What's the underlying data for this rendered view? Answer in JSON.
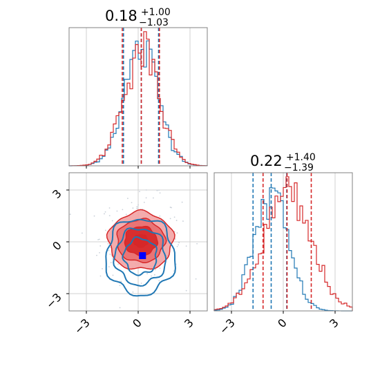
{
  "colors": {
    "red": "#d62728",
    "blue": "#1f77b4",
    "red_light": "#f3a3a4",
    "red_mid": "#e86e6f",
    "grid": "#d0d0d0",
    "marker": "#0000ff"
  },
  "titles": {
    "p1": {
      "main": "0.18",
      "sup": "+1.00",
      "sub": "−1.03"
    },
    "p2": {
      "main": "0.22",
      "sup": "+1.40",
      "sub": "−1.39"
    }
  },
  "ticks": {
    "labels": [
      "−3",
      "0",
      "3"
    ],
    "values": [
      -3,
      0,
      3
    ]
  },
  "chart_data": [
    {
      "type": "histogram",
      "panel": "marginal parameter 1",
      "xlim": [
        -4,
        4
      ],
      "grid": true,
      "series": [
        {
          "color": "#1f77b4",
          "quantiles": [
            -0.85,
            0.18,
            1.18
          ],
          "mean": 0.18,
          "std": 1.0
        },
        {
          "color": "#d62728",
          "quantiles": [
            -0.92,
            0.18,
            1.23
          ],
          "mean": 0.15,
          "std": 1.02
        }
      ]
    },
    {
      "type": "histogram",
      "panel": "marginal parameter 2",
      "xlim": [
        -4,
        4
      ],
      "grid": true,
      "series": [
        {
          "color": "#1f77b4",
          "quantiles": [
            -1.75,
            -0.7,
            0.2
          ],
          "mean": -0.7,
          "std": 1.0
        },
        {
          "color": "#d62728",
          "quantiles": [
            -1.17,
            0.22,
            1.62
          ],
          "mean": 0.22,
          "std": 1.4
        }
      ]
    },
    {
      "type": "contour",
      "panel": "joint parameter 1 vs parameter 2",
      "xlim": [
        -4,
        4
      ],
      "ylim": [
        -4,
        4
      ],
      "grid": true,
      "series": [
        {
          "color": "#d62728",
          "filled": true,
          "center": [
            0.15,
            0.22
          ],
          "sx": 1.02,
          "sy": 1.4
        },
        {
          "color": "#1f77b4",
          "filled": false,
          "center": [
            0.18,
            -0.7
          ],
          "sx": 1.0,
          "sy": 1.0
        }
      ],
      "marker": {
        "x": 0.25,
        "y": -0.8,
        "color": "#0000ff"
      }
    }
  ]
}
